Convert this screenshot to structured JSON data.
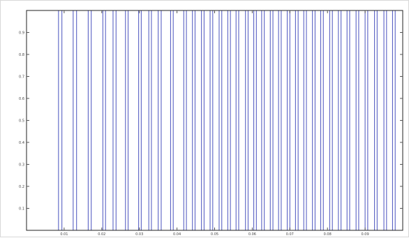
{
  "chart_data": {
    "type": "line",
    "title": "",
    "xlabel": "",
    "ylabel": "",
    "xlim": [
      0,
      0.1
    ],
    "ylim": [
      0,
      1
    ],
    "x_ticks": [
      0.01,
      0.02,
      0.03,
      0.04,
      0.05,
      0.06,
      0.07,
      0.08,
      0.09
    ],
    "x_tick_labels": [
      "0.01",
      "0.02",
      "0.03",
      "0.04",
      "0.05",
      "0.06",
      "0.07",
      "0.08",
      "0.09"
    ],
    "y_ticks": [
      0.1,
      0.2,
      0.3,
      0.4,
      0.5,
      0.6,
      0.7,
      0.8,
      0.9
    ],
    "y_tick_labels": [
      "0.1",
      "0.2",
      "0.3",
      "0.4",
      "0.5",
      "0.6",
      "0.7",
      "0.8",
      "0.9"
    ],
    "grid": false,
    "legend": "none",
    "series": [
      {
        "color": "#5a62c4",
        "pulses": [
          [
            0.0085,
            0.0094
          ],
          [
            0.0124,
            0.0133
          ],
          [
            0.0164,
            0.0172
          ],
          [
            0.0203,
            0.021
          ],
          [
            0.023,
            0.0238
          ],
          [
            0.0263,
            0.027
          ],
          [
            0.0298,
            0.0305
          ],
          [
            0.0325,
            0.0332
          ],
          [
            0.035,
            0.0358
          ],
          [
            0.0383,
            0.039
          ],
          [
            0.0418,
            0.0425
          ],
          [
            0.0441,
            0.0448
          ],
          [
            0.0465,
            0.0472
          ],
          [
            0.0488,
            0.0495
          ],
          [
            0.0512,
            0.0519
          ],
          [
            0.0535,
            0.0542
          ],
          [
            0.0557,
            0.0564
          ],
          [
            0.0582,
            0.0589
          ],
          [
            0.0604,
            0.0611
          ],
          [
            0.0625,
            0.0632
          ],
          [
            0.0648,
            0.0655
          ],
          [
            0.067,
            0.0677
          ],
          [
            0.0693,
            0.07
          ],
          [
            0.0715,
            0.0722
          ],
          [
            0.0737,
            0.0744
          ],
          [
            0.076,
            0.0767
          ],
          [
            0.0782,
            0.0789
          ],
          [
            0.0806,
            0.0813
          ],
          [
            0.0829,
            0.0836
          ],
          [
            0.0852,
            0.0859
          ],
          [
            0.0876,
            0.0883
          ],
          [
            0.09,
            0.0907
          ],
          [
            0.0925,
            0.0932
          ],
          [
            0.095,
            0.0957
          ],
          [
            0.0973,
            0.098
          ]
        ]
      }
    ]
  }
}
